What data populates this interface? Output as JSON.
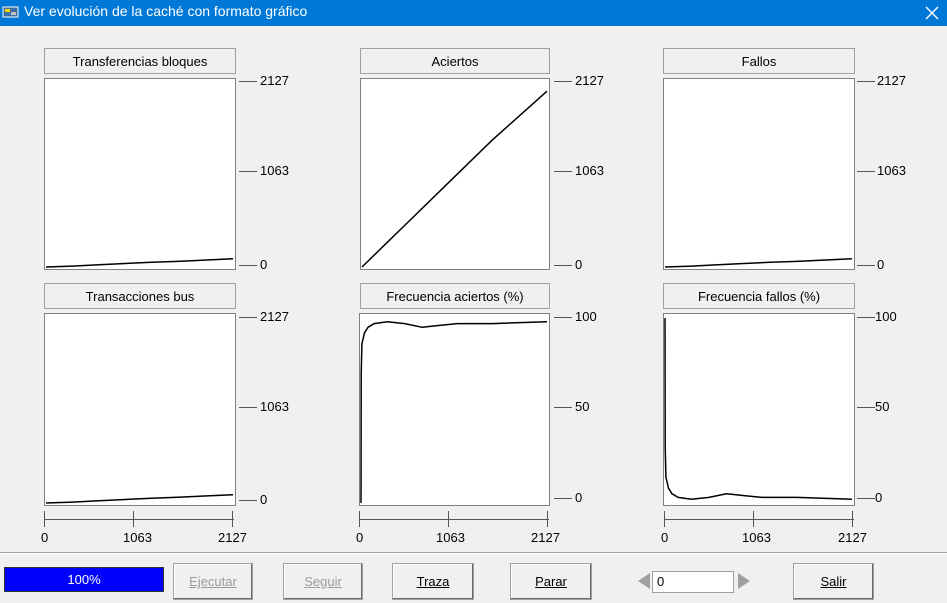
{
  "window": {
    "title": "Ver evolución de la caché con formato gráfico"
  },
  "charts": [
    {
      "title": "Transferencias bloques",
      "y_ticks": [
        "2127",
        "1063",
        "0"
      ]
    },
    {
      "title": "Aciertos",
      "y_ticks": [
        "2127",
        "1063",
        "0"
      ]
    },
    {
      "title": "Fallos",
      "y_ticks": [
        "2127",
        "1063",
        "0"
      ]
    },
    {
      "title": "Transacciones bus",
      "y_ticks": [
        "2127",
        "1063",
        "0"
      ]
    },
    {
      "title": "Frecuencia aciertos (%)",
      "y_ticks": [
        "100",
        "50",
        "0"
      ]
    },
    {
      "title": "Frecuencia fallos (%)",
      "y_ticks": [
        "100",
        "50",
        "0"
      ]
    }
  ],
  "x_ticks": [
    "0",
    "1063",
    "2127"
  ],
  "chart_data": [
    {
      "type": "line",
      "title": "Transferencias bloques",
      "ylim": [
        0,
        2127
      ],
      "x": [
        0,
        300,
        600,
        900,
        1200,
        1500,
        1800,
        2127
      ],
      "series": [
        {
          "values": [
            0,
            10,
            25,
            40,
            55,
            65,
            80,
            95
          ]
        }
      ]
    },
    {
      "type": "line",
      "title": "Aciertos",
      "ylim": [
        0,
        2127
      ],
      "x": [
        0,
        500,
        1000,
        1500,
        2127
      ],
      "series": [
        {
          "values": [
            0,
            490,
            980,
            1470,
            2032
          ]
        }
      ]
    },
    {
      "type": "line",
      "title": "Fallos",
      "ylim": [
        0,
        2127
      ],
      "x": [
        0,
        300,
        600,
        900,
        1200,
        1500,
        1800,
        2127
      ],
      "series": [
        {
          "values": [
            0,
            10,
            25,
            40,
            55,
            65,
            80,
            95
          ]
        }
      ]
    },
    {
      "type": "line",
      "title": "Transacciones bus",
      "ylim": [
        0,
        2127
      ],
      "x": [
        0,
        300,
        600,
        900,
        1200,
        1500,
        1800,
        2127
      ],
      "series": [
        {
          "values": [
            0,
            10,
            25,
            40,
            55,
            65,
            80,
            95
          ]
        }
      ]
    },
    {
      "type": "line",
      "title": "Frecuencia aciertos (%)",
      "ylim": [
        0,
        100
      ],
      "x": [
        0,
        2,
        10,
        40,
        80,
        150,
        300,
        500,
        700,
        900,
        1100,
        1500,
        2127
      ],
      "series": [
        {
          "values": [
            0,
            70,
            86,
            92,
            95,
            97,
            98,
            97,
            95,
            96,
            97,
            97,
            98
          ]
        }
      ]
    },
    {
      "type": "line",
      "title": "Frecuencia fallos (%)",
      "ylim": [
        0,
        100
      ],
      "x": [
        0,
        2,
        10,
        40,
        80,
        150,
        300,
        500,
        700,
        900,
        1100,
        1500,
        2127
      ],
      "series": [
        {
          "values": [
            100,
            30,
            14,
            8,
            5,
            3,
            2,
            3,
            5,
            4,
            3,
            3,
            2
          ]
        }
      ]
    }
  ],
  "progress": {
    "label": "100%",
    "value": 1.0
  },
  "buttons": {
    "ejecutar": "Ejecutar",
    "seguir": "Seguir",
    "traza": "Traza",
    "parar": "Parar",
    "salir": "Salir"
  },
  "counter": {
    "value": "0"
  },
  "colors": {
    "titlebar": "#0078d7",
    "progress": "#0000ff"
  }
}
